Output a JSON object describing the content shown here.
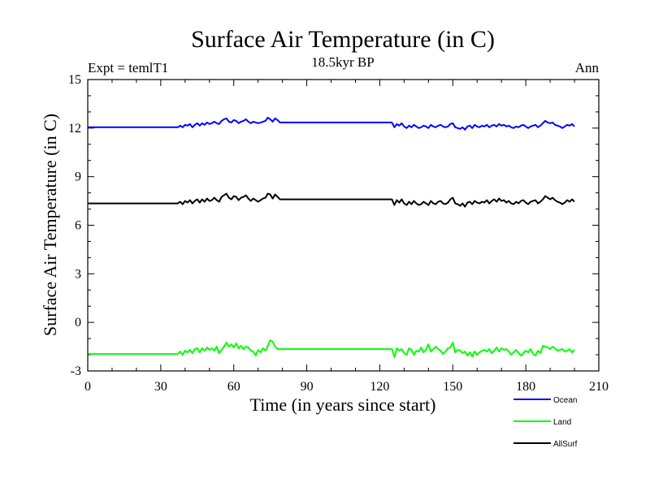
{
  "chart_data": {
    "type": "line",
    "title": "Surface Air Temperature (in C)",
    "subtitle": "18.5kyr BP",
    "left_label": "Expt = temlT1",
    "right_label": "Ann",
    "xlabel": "Time (in years since start)",
    "ylabel": "Surface Air Temperature (in C)",
    "xlim": [
      0,
      210
    ],
    "ylim": [
      -3,
      15
    ],
    "xticks": [
      0,
      30,
      60,
      90,
      120,
      150,
      180,
      210
    ],
    "yticks": [
      -3,
      0,
      3,
      6,
      9,
      12,
      15
    ],
    "legend_position": "bottom-right",
    "series": [
      {
        "name": "Ocean",
        "color": "#0000ff",
        "x": [
          0,
          37,
          38,
          39,
          40,
          41,
          42,
          43,
          44,
          45,
          46,
          47,
          48,
          49,
          50,
          51,
          52,
          53,
          54,
          55,
          56,
          57,
          58,
          59,
          60,
          61,
          62,
          63,
          64,
          65,
          66,
          67,
          68,
          69,
          70,
          71,
          72,
          73,
          74,
          75,
          76,
          77,
          78,
          79,
          80,
          125,
          126,
          127,
          128,
          129,
          130,
          131,
          132,
          133,
          134,
          135,
          136,
          137,
          138,
          139,
          140,
          141,
          142,
          143,
          144,
          145,
          146,
          147,
          148,
          149,
          150,
          151,
          152,
          153,
          154,
          155,
          156,
          157,
          158,
          159,
          160,
          161,
          162,
          163,
          164,
          165,
          166,
          167,
          168,
          169,
          170,
          171,
          172,
          173,
          174,
          175,
          176,
          177,
          178,
          179,
          180,
          181,
          182,
          183,
          184,
          185,
          186,
          187,
          188,
          189,
          190,
          191,
          192,
          193,
          194,
          195,
          196,
          197,
          198,
          199,
          200
        ],
        "y": [
          12.05,
          12.05,
          12.15,
          12.05,
          12.2,
          12.15,
          12.25,
          12.05,
          12.2,
          12.3,
          12.15,
          12.3,
          12.2,
          12.35,
          12.25,
          12.3,
          12.4,
          12.3,
          12.25,
          12.45,
          12.55,
          12.6,
          12.4,
          12.35,
          12.5,
          12.45,
          12.3,
          12.4,
          12.45,
          12.55,
          12.4,
          12.3,
          12.4,
          12.35,
          12.3,
          12.35,
          12.4,
          12.45,
          12.65,
          12.55,
          12.4,
          12.6,
          12.5,
          12.35,
          12.35,
          12.35,
          12.05,
          12.25,
          12.15,
          12.3,
          12.1,
          12.0,
          12.15,
          12.05,
          12.2,
          12.1,
          12.0,
          12.05,
          12.15,
          12.1,
          12.0,
          12.2,
          12.1,
          12.05,
          12.15,
          12.2,
          12.1,
          12.05,
          12.1,
          12.25,
          12.3,
          12.05,
          12.0,
          11.95,
          12.05,
          11.9,
          12.1,
          12.15,
          12.0,
          12.2,
          12.1,
          12.05,
          12.15,
          12.1,
          12.2,
          12.05,
          12.15,
          12.2,
          12.1,
          12.25,
          12.15,
          12.2,
          12.1,
          12.15,
          12.05,
          12.0,
          12.1,
          12.05,
          12.15,
          12.2,
          12.1,
          12.0,
          12.1,
          12.15,
          12.2,
          12.05,
          12.15,
          12.3,
          12.45,
          12.35,
          12.3,
          12.35,
          12.2,
          12.15,
          12.1,
          12.0,
          12.1,
          12.2,
          12.15,
          12.25,
          12.1
        ]
      },
      {
        "name": "Land",
        "color": "#00ff00",
        "x": [
          0,
          37,
          38,
          39,
          40,
          41,
          42,
          43,
          44,
          45,
          46,
          47,
          48,
          49,
          50,
          51,
          52,
          53,
          54,
          55,
          56,
          57,
          58,
          59,
          60,
          61,
          62,
          63,
          64,
          65,
          66,
          67,
          68,
          69,
          70,
          71,
          72,
          73,
          74,
          75,
          76,
          77,
          78,
          79,
          80,
          125,
          126,
          127,
          128,
          129,
          130,
          131,
          132,
          133,
          134,
          135,
          136,
          137,
          138,
          139,
          140,
          141,
          142,
          143,
          144,
          145,
          146,
          147,
          148,
          149,
          150,
          151,
          152,
          153,
          154,
          155,
          156,
          157,
          158,
          159,
          160,
          161,
          162,
          163,
          164,
          165,
          166,
          167,
          168,
          169,
          170,
          171,
          172,
          173,
          174,
          175,
          176,
          177,
          178,
          179,
          180,
          181,
          182,
          183,
          184,
          185,
          186,
          187,
          188,
          189,
          190,
          191,
          192,
          193,
          194,
          195,
          196,
          197,
          198,
          199,
          200
        ],
        "y": [
          -1.95,
          -1.95,
          -1.8,
          -2.0,
          -1.75,
          -1.85,
          -1.7,
          -1.9,
          -1.65,
          -1.6,
          -1.85,
          -1.6,
          -1.75,
          -1.55,
          -1.7,
          -1.6,
          -1.75,
          -1.5,
          -1.9,
          -1.7,
          -1.5,
          -1.25,
          -1.5,
          -1.35,
          -1.55,
          -1.3,
          -1.6,
          -1.45,
          -1.65,
          -1.5,
          -1.55,
          -1.75,
          -1.8,
          -2.05,
          -1.7,
          -1.85,
          -1.6,
          -1.75,
          -1.45,
          -1.1,
          -1.2,
          -1.5,
          -1.65,
          -1.65,
          -1.65,
          -1.65,
          -2.15,
          -1.6,
          -1.75,
          -1.65,
          -1.9,
          -2.0,
          -1.6,
          -1.7,
          -2.0,
          -1.75,
          -1.8,
          -1.55,
          -1.85,
          -1.7,
          -1.35,
          -1.8,
          -1.65,
          -1.5,
          -1.65,
          -1.75,
          -1.95,
          -1.8,
          -1.6,
          -1.55,
          -1.25,
          -1.85,
          -1.7,
          -1.75,
          -1.9,
          -1.8,
          -2.05,
          -1.85,
          -2.1,
          -1.8,
          -2.0,
          -1.85,
          -1.75,
          -1.7,
          -1.8,
          -1.65,
          -1.9,
          -1.75,
          -1.55,
          -1.8,
          -1.6,
          -1.7,
          -1.65,
          -1.8,
          -2.0,
          -1.85,
          -1.7,
          -1.9,
          -2.05,
          -1.9,
          -1.75,
          -1.85,
          -1.65,
          -1.95,
          -2.05,
          -1.75,
          -1.9,
          -1.45,
          -1.5,
          -1.55,
          -1.65,
          -1.5,
          -1.6,
          -1.75,
          -1.7,
          -1.65,
          -1.8,
          -1.75,
          -1.65,
          -1.85,
          -1.7
        ]
      },
      {
        "name": "AllSurf",
        "color": "#000000",
        "x": [
          0,
          37,
          38,
          39,
          40,
          41,
          42,
          43,
          44,
          45,
          46,
          47,
          48,
          49,
          50,
          51,
          52,
          53,
          54,
          55,
          56,
          57,
          58,
          59,
          60,
          61,
          62,
          63,
          64,
          65,
          66,
          67,
          68,
          69,
          70,
          71,
          72,
          73,
          74,
          75,
          76,
          77,
          78,
          79,
          80,
          125,
          126,
          127,
          128,
          129,
          130,
          131,
          132,
          133,
          134,
          135,
          136,
          137,
          138,
          139,
          140,
          141,
          142,
          143,
          144,
          145,
          146,
          147,
          148,
          149,
          150,
          151,
          152,
          153,
          154,
          155,
          156,
          157,
          158,
          159,
          160,
          161,
          162,
          163,
          164,
          165,
          166,
          167,
          168,
          169,
          170,
          171,
          172,
          173,
          174,
          175,
          176,
          177,
          178,
          179,
          180,
          181,
          182,
          183,
          184,
          185,
          186,
          187,
          188,
          189,
          190,
          191,
          192,
          193,
          194,
          195,
          196,
          197,
          198,
          199,
          200
        ],
        "y": [
          7.35,
          7.35,
          7.45,
          7.3,
          7.5,
          7.4,
          7.55,
          7.35,
          7.5,
          7.6,
          7.4,
          7.6,
          7.45,
          7.65,
          7.5,
          7.55,
          7.7,
          7.55,
          7.45,
          7.75,
          7.85,
          7.95,
          7.7,
          7.6,
          7.8,
          7.75,
          7.55,
          7.7,
          7.75,
          7.85,
          7.65,
          7.5,
          7.65,
          7.55,
          7.45,
          7.55,
          7.65,
          7.7,
          7.95,
          7.9,
          7.65,
          7.9,
          7.75,
          7.6,
          7.6,
          7.6,
          7.25,
          7.55,
          7.4,
          7.6,
          7.35,
          7.25,
          7.45,
          7.3,
          7.5,
          7.35,
          7.25,
          7.3,
          7.45,
          7.35,
          7.25,
          7.5,
          7.35,
          7.3,
          7.45,
          7.5,
          7.35,
          7.3,
          7.4,
          7.6,
          7.7,
          7.35,
          7.3,
          7.2,
          7.35,
          7.15,
          7.4,
          7.45,
          7.3,
          7.5,
          7.4,
          7.35,
          7.45,
          7.4,
          7.55,
          7.35,
          7.5,
          7.6,
          7.45,
          7.65,
          7.5,
          7.55,
          7.4,
          7.5,
          7.35,
          7.3,
          7.45,
          7.35,
          7.5,
          7.55,
          7.4,
          7.3,
          7.45,
          7.5,
          7.55,
          7.35,
          7.45,
          7.6,
          7.8,
          7.7,
          7.6,
          7.7,
          7.55,
          7.45,
          7.4,
          7.3,
          7.4,
          7.55,
          7.45,
          7.6,
          7.45
        ]
      }
    ]
  }
}
